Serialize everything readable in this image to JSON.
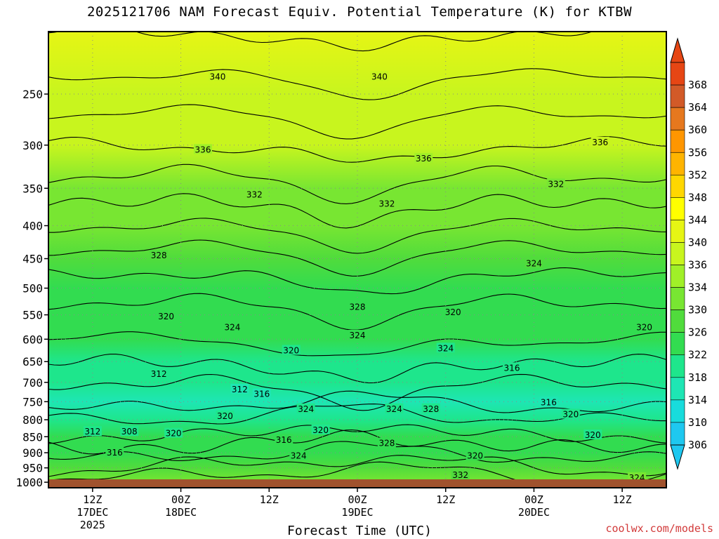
{
  "chart_data": {
    "type": "heatmap",
    "title": "2025121706 NAM Forecast Equiv. Potential Temperature (K) for KTBW",
    "xlabel": "Forecast Time (UTC)",
    "ylabel": "",
    "x_ticks": [
      {
        "label": "12Z",
        "sub": [
          "17DEC",
          "2025"
        ],
        "hour": 6
      },
      {
        "label": "00Z",
        "sub": [
          "18DEC"
        ],
        "hour": 18
      },
      {
        "label": "12Z",
        "sub": [],
        "hour": 30
      },
      {
        "label": "00Z",
        "sub": [
          "19DEC"
        ],
        "hour": 42
      },
      {
        "label": "12Z",
        "sub": [],
        "hour": 54
      },
      {
        "label": "00Z",
        "sub": [
          "20DEC"
        ],
        "hour": 66
      },
      {
        "label": "12Z",
        "sub": [],
        "hour": 78
      }
    ],
    "x_range_hours": [
      0,
      84
    ],
    "y_ticks": [
      250,
      300,
      350,
      400,
      450,
      500,
      550,
      600,
      650,
      700,
      750,
      800,
      850,
      900,
      950,
      1000
    ],
    "y_range_hpa": [
      200,
      1020
    ],
    "y_scale": "log-pressure",
    "colorbar_levels": [
      306,
      310,
      314,
      318,
      322,
      326,
      330,
      334,
      336,
      340,
      344,
      348,
      352,
      356,
      360,
      364,
      368
    ],
    "colorbar_colors": [
      "#1ec8f0",
      "#18dcdc",
      "#1ee6b4",
      "#1ee68c",
      "#32dc50",
      "#50dc3c",
      "#78e632",
      "#a0f028",
      "#c8f51e",
      "#e6f514",
      "#ffff00",
      "#ffd700",
      "#ffb400",
      "#ff9600",
      "#e6781e",
      "#d25a28",
      "#e64614"
    ],
    "field_profile": [
      {
        "p": 200,
        "theta_e": 342
      },
      {
        "p": 250,
        "theta_e": 339
      },
      {
        "p": 300,
        "theta_e": 336
      },
      {
        "p": 350,
        "theta_e": 333
      },
      {
        "p": 400,
        "theta_e": 330
      },
      {
        "p": 450,
        "theta_e": 327
      },
      {
        "p": 500,
        "theta_e": 325
      },
      {
        "p": 550,
        "theta_e": 323
      },
      {
        "p": 600,
        "theta_e": 322
      },
      {
        "p": 650,
        "theta_e": 320
      },
      {
        "p": 700,
        "theta_e": 318
      },
      {
        "p": 750,
        "theta_e": 317
      },
      {
        "p": 800,
        "theta_e": 320
      },
      {
        "p": 850,
        "theta_e": 322
      },
      {
        "p": 900,
        "theta_e": 325
      },
      {
        "p": 950,
        "theta_e": 328
      },
      {
        "p": 1000,
        "theta_e": 331
      }
    ],
    "contour_labels": [
      {
        "text": "340",
        "hour": 23,
        "p": 235
      },
      {
        "text": "340",
        "hour": 45,
        "p": 235
      },
      {
        "text": "336",
        "hour": 21,
        "p": 305
      },
      {
        "text": "336",
        "hour": 51,
        "p": 315
      },
      {
        "text": "336",
        "hour": 75,
        "p": 297
      },
      {
        "text": "332",
        "hour": 28,
        "p": 358
      },
      {
        "text": "332",
        "hour": 46,
        "p": 370
      },
      {
        "text": "332",
        "hour": 69,
        "p": 345
      },
      {
        "text": "328",
        "hour": 15,
        "p": 445
      },
      {
        "text": "328",
        "hour": 42,
        "p": 535
      },
      {
        "text": "324",
        "hour": 66,
        "p": 458
      },
      {
        "text": "324",
        "hour": 25,
        "p": 575
      },
      {
        "text": "324",
        "hour": 42,
        "p": 592
      },
      {
        "text": "324",
        "hour": 54,
        "p": 620
      },
      {
        "text": "320",
        "hour": 16,
        "p": 553
      },
      {
        "text": "320",
        "hour": 55,
        "p": 545
      },
      {
        "text": "320",
        "hour": 81,
        "p": 575
      },
      {
        "text": "320",
        "hour": 33,
        "p": 625
      },
      {
        "text": "316",
        "hour": 63,
        "p": 665
      },
      {
        "text": "312",
        "hour": 15,
        "p": 680
      },
      {
        "text": "312",
        "hour": 26,
        "p": 718
      },
      {
        "text": "316",
        "hour": 29,
        "p": 730
      },
      {
        "text": "324",
        "hour": 35,
        "p": 770
      },
      {
        "text": "324",
        "hour": 47,
        "p": 770
      },
      {
        "text": "328",
        "hour": 52,
        "p": 770
      },
      {
        "text": "316",
        "hour": 68,
        "p": 752
      },
      {
        "text": "320",
        "hour": 24,
        "p": 790
      },
      {
        "text": "320",
        "hour": 71,
        "p": 785
      },
      {
        "text": "320",
        "hour": 17,
        "p": 840
      },
      {
        "text": "312",
        "hour": 6,
        "p": 835
      },
      {
        "text": "308",
        "hour": 11,
        "p": 835
      },
      {
        "text": "316",
        "hour": 9,
        "p": 900
      },
      {
        "text": "316",
        "hour": 32,
        "p": 860
      },
      {
        "text": "320",
        "hour": 37,
        "p": 830
      },
      {
        "text": "320",
        "hour": 74,
        "p": 845
      },
      {
        "text": "328",
        "hour": 46,
        "p": 870
      },
      {
        "text": "324",
        "hour": 34,
        "p": 910
      },
      {
        "text": "320",
        "hour": 58,
        "p": 910
      },
      {
        "text": "332",
        "hour": 56,
        "p": 975
      },
      {
        "text": "324",
        "hour": 80,
        "p": 985
      }
    ]
  },
  "colors": {
    "ground": "#a0522d",
    "contour": "#000000",
    "gridline": "#8a8a8a"
  },
  "x_axis": {
    "label": "Forecast Time (UTC)"
  },
  "credit": "coolwx.com/models"
}
